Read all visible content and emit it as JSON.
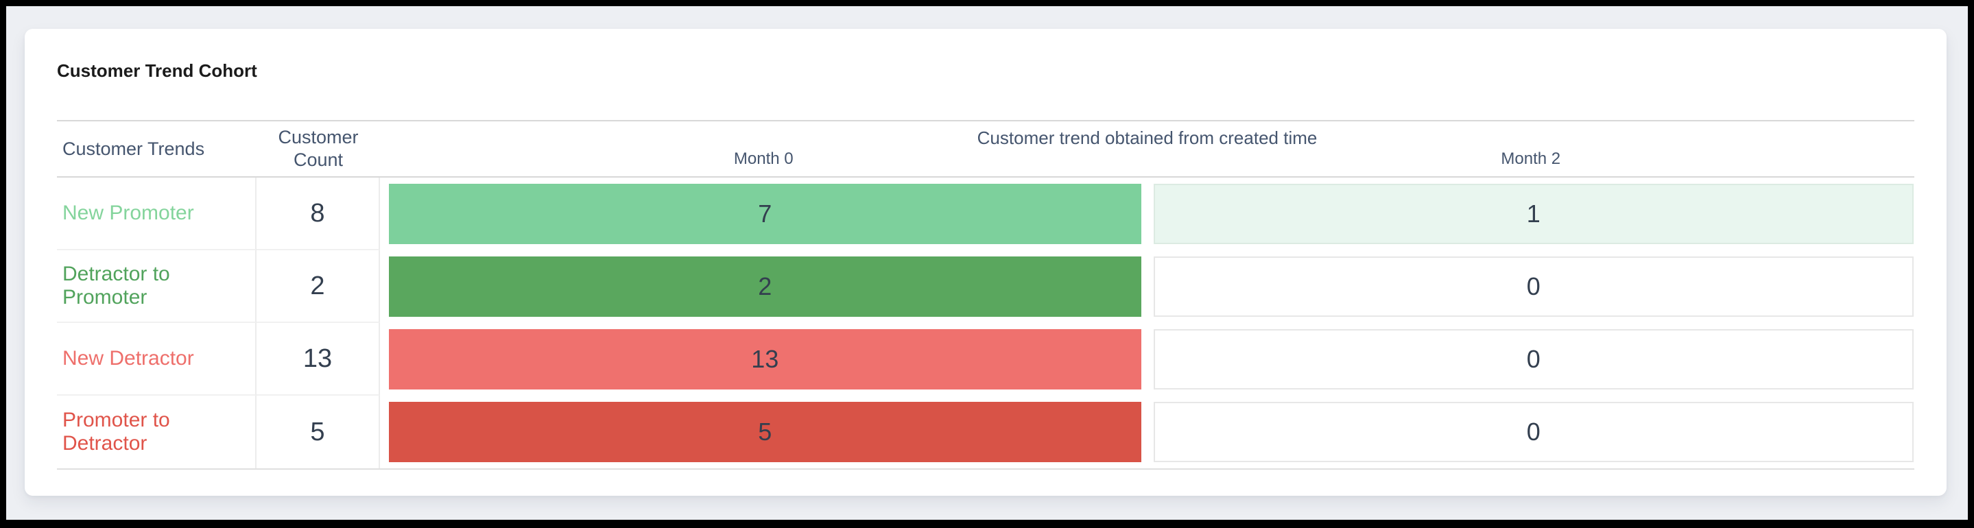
{
  "widget": {
    "title": "Customer Trend Cohort"
  },
  "table": {
    "headers": {
      "customer_trends": "Customer Trends",
      "customer_count": "Customer Count",
      "month_group": "Customer trend obtained from created time",
      "month_0": "Month 0",
      "month_2": "Month 2"
    },
    "rows": [
      {
        "label": "New Promoter",
        "label_color": "#84d49c",
        "count": "8",
        "month0_value": "7",
        "month0_bg": "#7dd09c",
        "month2_value": "1",
        "month2_bg": "#e9f6ef"
      },
      {
        "label": "Detractor to Promoter",
        "label_color": "#51a35c",
        "count": "2",
        "month0_value": "2",
        "month0_bg": "#5aa75e",
        "month2_value": "0",
        "month2_bg": "#ffffff"
      },
      {
        "label": "New Detractor",
        "label_color": "#ee6f6b",
        "count": "13",
        "month0_value": "13",
        "month0_bg": "#ef716e",
        "month2_value": "0",
        "month2_bg": "#ffffff"
      },
      {
        "label": "Promoter to Detractor",
        "label_color": "#e0544a",
        "count": "5",
        "month0_value": "5",
        "month0_bg": "#d85347",
        "month2_value": "0",
        "month2_bg": "#ffffff"
      }
    ]
  },
  "chart_data": {
    "type": "table",
    "title": "Customer Trend Cohort",
    "group_header": "Customer trend obtained from created time",
    "columns": [
      "Customer Trends",
      "Customer Count",
      "Month 0",
      "Month 2"
    ],
    "rows": [
      {
        "customer_trend": "New Promoter",
        "customer_count": 8,
        "month_0": 7,
        "month_2": 1
      },
      {
        "customer_trend": "Detractor to Promoter",
        "customer_count": 2,
        "month_0": 2,
        "month_2": 0
      },
      {
        "customer_trend": "New Detractor",
        "customer_count": 13,
        "month_0": 13,
        "month_2": 0
      },
      {
        "customer_trend": "Promoter to Detractor",
        "customer_count": 5,
        "month_0": 5,
        "month_2": 0
      }
    ],
    "colors": {
      "new_promoter_bar": "#7dd09c",
      "detractor_to_promoter_bar": "#5aa75e",
      "new_detractor_bar": "#ef716e",
      "promoter_to_detractor_bar": "#d85347",
      "month2_new_promoter_fill": "#e9f6ef"
    }
  }
}
